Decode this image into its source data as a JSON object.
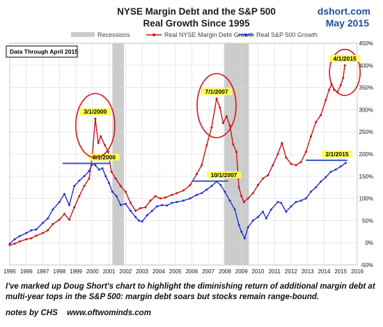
{
  "chart_data": {
    "type": "line",
    "title": "NYSE Margin Debt and the S&P 500",
    "subtitle": "Real Growth Since 1995",
    "brand": "dshort.com",
    "date_label": "May 2015",
    "data_through": "Data Through April 2015",
    "xlim": [
      1995,
      2016
    ],
    "ylim": [
      -50,
      450
    ],
    "y_ticks": [
      "-50%",
      "0%",
      "50%",
      "100%",
      "150%",
      "200%",
      "250%",
      "300%",
      "350%",
      "400%",
      "450%"
    ],
    "x_ticks": [
      "1995",
      "1996",
      "1997",
      "1998",
      "1999",
      "2000",
      "2001",
      "2002",
      "2003",
      "2004",
      "2005",
      "2006",
      "2007",
      "2008",
      "2009",
      "2010",
      "2011",
      "2012",
      "2013",
      "2014",
      "2015",
      "2016"
    ],
    "grid": true,
    "legend_position": "top",
    "legend": {
      "recessions": "Recessions",
      "margin": "Real NYSE Margin Debt Growth",
      "sp500": "Real S&P 500 Growth"
    },
    "colors": {
      "margin": "#cc1111",
      "sp500": "#1f2fd6",
      "recession": "#cccccc",
      "circle": "#dd1111",
      "level_line": "#3355cc",
      "label_bg": "#ffff55"
    },
    "recessions": [
      [
        2001.2,
        2001.9
      ],
      [
        2007.95,
        2009.45
      ]
    ],
    "series": [
      {
        "name": "Real NYSE Margin Debt Growth",
        "points": [
          [
            1995.0,
            -5
          ],
          [
            1995.3,
            -2
          ],
          [
            1995.6,
            3
          ],
          [
            1996.0,
            8
          ],
          [
            1996.3,
            10
          ],
          [
            1996.6,
            16
          ],
          [
            1997.0,
            22
          ],
          [
            1997.3,
            28
          ],
          [
            1997.6,
            42
          ],
          [
            1998.0,
            52
          ],
          [
            1998.3,
            65
          ],
          [
            1998.6,
            52
          ],
          [
            1998.9,
            80
          ],
          [
            1999.2,
            105
          ],
          [
            1999.5,
            128
          ],
          [
            1999.8,
            145
          ],
          [
            2000.0,
            200
          ],
          [
            2000.17,
            280
          ],
          [
            2000.35,
            225
          ],
          [
            2000.5,
            240
          ],
          [
            2000.75,
            220
          ],
          [
            2000.95,
            205
          ],
          [
            2001.15,
            160
          ],
          [
            2001.4,
            145
          ],
          [
            2001.7,
            128
          ],
          [
            2002.0,
            115
          ],
          [
            2002.3,
            90
          ],
          [
            2002.6,
            72
          ],
          [
            2002.9,
            78
          ],
          [
            2003.2,
            80
          ],
          [
            2003.5,
            95
          ],
          [
            2003.8,
            105
          ],
          [
            2004.1,
            100
          ],
          [
            2004.4,
            102
          ],
          [
            2004.8,
            108
          ],
          [
            2005.1,
            112
          ],
          [
            2005.5,
            118
          ],
          [
            2005.9,
            130
          ],
          [
            2006.3,
            155
          ],
          [
            2006.6,
            175
          ],
          [
            2006.9,
            220
          ],
          [
            2007.2,
            260
          ],
          [
            2007.5,
            325
          ],
          [
            2007.7,
            305
          ],
          [
            2007.9,
            270
          ],
          [
            2008.1,
            285
          ],
          [
            2008.3,
            265
          ],
          [
            2008.5,
            222
          ],
          [
            2008.7,
            205
          ],
          [
            2008.85,
            125
          ],
          [
            2009.0,
            105
          ],
          [
            2009.15,
            92
          ],
          [
            2009.4,
            100
          ],
          [
            2009.7,
            112
          ],
          [
            2010.0,
            130
          ],
          [
            2010.3,
            145
          ],
          [
            2010.6,
            152
          ],
          [
            2010.9,
            175
          ],
          [
            2011.2,
            200
          ],
          [
            2011.45,
            225
          ],
          [
            2011.7,
            192
          ],
          [
            2012.0,
            178
          ],
          [
            2012.3,
            175
          ],
          [
            2012.6,
            182
          ],
          [
            2012.9,
            205
          ],
          [
            2013.2,
            240
          ],
          [
            2013.5,
            272
          ],
          [
            2013.8,
            288
          ],
          [
            2014.1,
            322
          ],
          [
            2014.3,
            345
          ],
          [
            2014.45,
            358
          ],
          [
            2014.6,
            345
          ],
          [
            2014.8,
            340
          ],
          [
            2015.0,
            355
          ],
          [
            2015.15,
            372
          ],
          [
            2015.25,
            400
          ]
        ]
      },
      {
        "name": "Real S&P 500 Growth",
        "points": [
          [
            1995.0,
            -2
          ],
          [
            1995.3,
            8
          ],
          [
            1995.6,
            15
          ],
          [
            1996.0,
            22
          ],
          [
            1996.3,
            28
          ],
          [
            1996.6,
            30
          ],
          [
            1997.0,
            45
          ],
          [
            1997.3,
            55
          ],
          [
            1997.6,
            75
          ],
          [
            1998.0,
            92
          ],
          [
            1998.3,
            110
          ],
          [
            1998.6,
            85
          ],
          [
            1998.9,
            128
          ],
          [
            1999.2,
            140
          ],
          [
            1999.5,
            150
          ],
          [
            1999.8,
            162
          ],
          [
            2000.0,
            178
          ],
          [
            2000.17,
            175
          ],
          [
            2000.4,
            165
          ],
          [
            2000.6,
            168
          ],
          [
            2000.8,
            150
          ],
          [
            2001.0,
            135
          ],
          [
            2001.2,
            115
          ],
          [
            2001.45,
            105
          ],
          [
            2001.7,
            85
          ],
          [
            2002.0,
            88
          ],
          [
            2002.3,
            72
          ],
          [
            2002.6,
            58
          ],
          [
            2002.8,
            50
          ],
          [
            2003.0,
            48
          ],
          [
            2003.3,
            62
          ],
          [
            2003.6,
            72
          ],
          [
            2003.9,
            82
          ],
          [
            2004.2,
            85
          ],
          [
            2004.5,
            84
          ],
          [
            2004.8,
            90
          ],
          [
            2005.1,
            92
          ],
          [
            2005.5,
            95
          ],
          [
            2005.9,
            100
          ],
          [
            2006.3,
            108
          ],
          [
            2006.6,
            112
          ],
          [
            2006.9,
            120
          ],
          [
            2007.2,
            128
          ],
          [
            2007.5,
            138
          ],
          [
            2007.75,
            130
          ],
          [
            2008.0,
            115
          ],
          [
            2008.3,
            95
          ],
          [
            2008.6,
            75
          ],
          [
            2008.85,
            40
          ],
          [
            2009.0,
            25
          ],
          [
            2009.2,
            10
          ],
          [
            2009.4,
            35
          ],
          [
            2009.7,
            50
          ],
          [
            2010.0,
            58
          ],
          [
            2010.3,
            70
          ],
          [
            2010.5,
            55
          ],
          [
            2010.8,
            75
          ],
          [
            2011.2,
            92
          ],
          [
            2011.4,
            90
          ],
          [
            2011.7,
            70
          ],
          [
            2012.0,
            82
          ],
          [
            2012.3,
            92
          ],
          [
            2012.6,
            95
          ],
          [
            2012.9,
            100
          ],
          [
            2013.2,
            115
          ],
          [
            2013.5,
            125
          ],
          [
            2013.8,
            138
          ],
          [
            2014.1,
            148
          ],
          [
            2014.4,
            160
          ],
          [
            2014.7,
            165
          ],
          [
            2015.0,
            172
          ],
          [
            2015.3,
            180
          ]
        ]
      }
    ],
    "annotations": [
      {
        "label": "3/1/2000",
        "x": 2000.17,
        "y": 280,
        "circle_rx": 28,
        "circle_ry": 46
      },
      {
        "label": "7/1/2007",
        "x": 2007.5,
        "y": 325,
        "circle_rx": 28,
        "circle_ry": 46
      },
      {
        "label": "4/1/2015",
        "x": 2015.25,
        "y": 400,
        "circle_rx": 22,
        "circle_ry": 33
      }
    ],
    "level_marks": [
      {
        "label": "8/1/2000",
        "y": 179,
        "x_from": 1998.2,
        "x_to": 2001.1
      },
      {
        "label": "10/1/2007",
        "y": 139,
        "x_from": 2006.0,
        "x_to": 2008.2
      },
      {
        "label": "2/1/2015",
        "y": 186,
        "x_from": 2012.9,
        "x_to": 2015.4
      }
    ]
  },
  "caption": "I've marked up Doug Short's chart to highlight the diminishing return of additional margin debt at multi-year tops in the S&P 500: margin debt soars but stocks remain range-bound.",
  "notes": {
    "author": "notes by CHS",
    "site": "www.oftwominds.com"
  }
}
